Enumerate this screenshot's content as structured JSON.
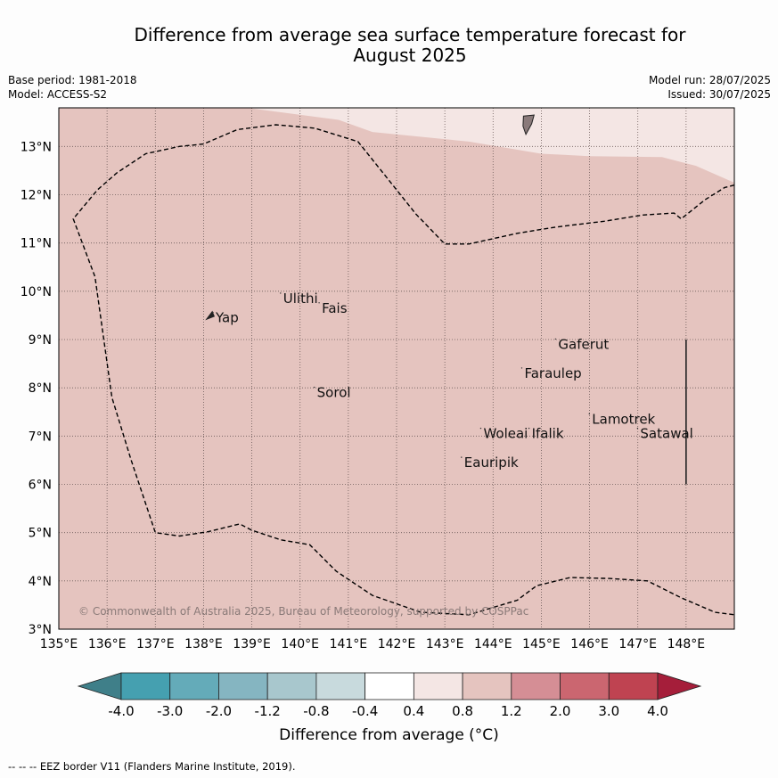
{
  "title_line1": "Difference from average sea surface temperature forecast for",
  "title_line2": "August 2025",
  "base_period": "Base period: 1981-2018",
  "model": "Model: ACCESS-S2",
  "model_run": "Model run: 28/07/2025",
  "issued": "Issued: 30/07/2025",
  "copyright": "© Commonwealth of Australia 2025, Bureau of Meteorology, supported by COSPPac",
  "lon_ticks": [
    "135°E",
    "136°E",
    "137°E",
    "138°E",
    "139°E",
    "140°E",
    "141°E",
    "142°E",
    "143°E",
    "144°E",
    "145°E",
    "146°E",
    "147°E",
    "148°E"
  ],
  "lat_ticks": [
    "3°N",
    "4°N",
    "5°N",
    "6°N",
    "7°N",
    "8°N",
    "9°N",
    "10°N",
    "11°N",
    "12°N",
    "13°N"
  ],
  "places": [
    {
      "name": "Yap",
      "lon": 138.25,
      "lat": 9.45
    },
    {
      "name": "Ulithi",
      "lon": 139.65,
      "lat": 9.85
    },
    {
      "name": "Fais",
      "lon": 140.45,
      "lat": 9.65
    },
    {
      "name": "Gaferut",
      "lon": 145.35,
      "lat": 8.9
    },
    {
      "name": "Faraulep",
      "lon": 144.65,
      "lat": 8.3
    },
    {
      "name": "Sorol",
      "lon": 140.35,
      "lat": 7.9
    },
    {
      "name": "Lamotrek",
      "lon": 146.05,
      "lat": 7.35
    },
    {
      "name": "Woleai",
      "lon": 143.8,
      "lat": 7.05
    },
    {
      "name": "Ifalik",
      "lon": 144.8,
      "lat": 7.05
    },
    {
      "name": "Satawal",
      "lon": 147.05,
      "lat": 7.05
    },
    {
      "name": "Eauripik",
      "lon": 143.4,
      "lat": 6.45
    }
  ],
  "colorbar": {
    "labels": [
      "-4.0",
      "-3.0",
      "-2.0",
      "-1.2",
      "-0.8",
      "-0.4",
      "0.4",
      "0.8",
      "1.2",
      "2.0",
      "3.0",
      "4.0"
    ],
    "colors": [
      "#3f7f89",
      "#45a0b0",
      "#64abb9",
      "#85b5c1",
      "#a8c7cd",
      "#c8dadd",
      "#ffffff",
      "#f4e6e4",
      "#e5c4bf",
      "#d58e95",
      "#cb6670",
      "#bf4351",
      "#a51e3a"
    ]
  },
  "colorbar_label": "Difference from average (°C)",
  "fill_colors": {
    "anomaly_0_8_to_1_2": "#e5c4bf",
    "anomaly_0_4_to_0_8": "#f4e6e4",
    "land": "#8a7a7a"
  },
  "eez_legend": "-- -- -- EEZ border V11 (Flanders Marine Institute, 2019)."
}
